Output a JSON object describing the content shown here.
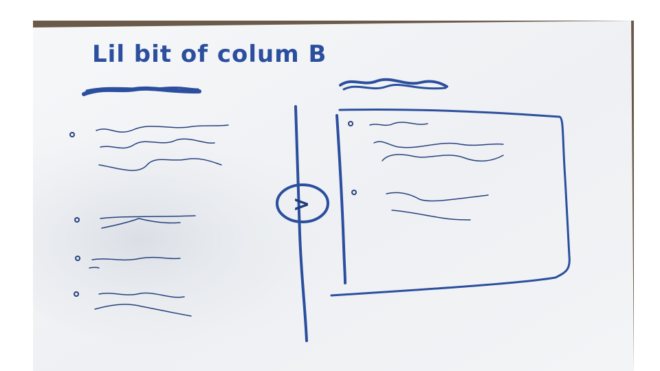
{
  "title": "Lil bit of colum B",
  "toggle": {
    "glyph": ">"
  },
  "colors": {
    "ink": "#2b4f9e",
    "paper": "#f4f5f7",
    "table": "#6b5a4a"
  }
}
